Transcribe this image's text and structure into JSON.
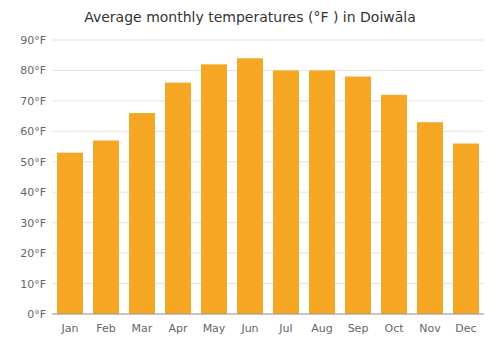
{
  "chart_data": {
    "type": "bar",
    "title": "Average monthly temperatures (°F ) in Doiwāla",
    "categories": [
      "Jan",
      "Feb",
      "Mar",
      "Apr",
      "May",
      "Jun",
      "Jul",
      "Aug",
      "Sep",
      "Oct",
      "Nov",
      "Dec"
    ],
    "values": [
      53,
      57,
      66,
      76,
      82,
      84,
      80,
      80,
      78,
      72,
      63,
      56
    ],
    "color": "#F5A623",
    "ylim": [
      0,
      90
    ],
    "yticks": [
      {
        "value": 0,
        "label": "0°F"
      },
      {
        "value": 10,
        "label": "10°F"
      },
      {
        "value": 20,
        "label": "20°F"
      },
      {
        "value": 30,
        "label": "30°F"
      },
      {
        "value": 40,
        "label": "40°F"
      },
      {
        "value": 50,
        "label": "50°F"
      },
      {
        "value": 60,
        "label": "60°F"
      },
      {
        "value": 70,
        "label": "70°F"
      },
      {
        "value": 80,
        "label": "80°F"
      },
      {
        "value": 90,
        "label": "90°F"
      }
    ],
    "grid": true
  }
}
